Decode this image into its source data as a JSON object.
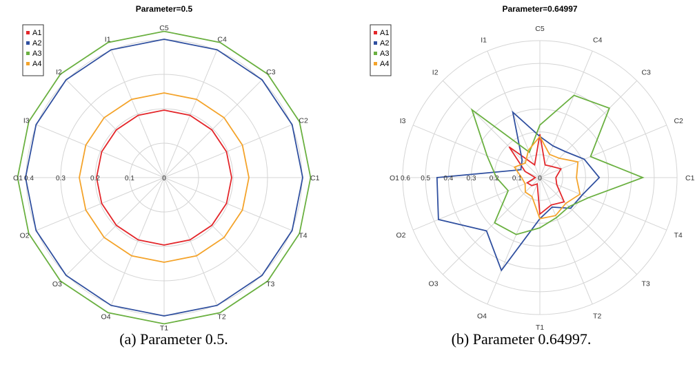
{
  "chart_data": [
    {
      "type": "radar",
      "title": "Parameter=0.5",
      "caption": "(a) Parameter 0.5.",
      "axes": [
        "C5",
        "C4",
        "C3",
        "C2",
        "C1",
        "T4",
        "T3",
        "T2",
        "T1",
        "O4",
        "O3",
        "O2",
        "O1",
        "I3",
        "I2",
        "I1"
      ],
      "rmax": 0.4,
      "ticks": [
        0,
        0.1,
        0.2,
        0.3
      ],
      "tick_labels": [
        "0",
        "0.1",
        "0.2",
        "0.3"
      ],
      "outer_label": "0.4",
      "grid": true,
      "legend_position": "top-left",
      "series": [
        {
          "name": "A1",
          "color": "#e3262a",
          "values": [
            0.196,
            0.196,
            0.196,
            0.196,
            0.196,
            0.196,
            0.196,
            0.196,
            0.196,
            0.196,
            0.196,
            0.196,
            0.196,
            0.196,
            0.196,
            0.196
          ]
        },
        {
          "name": "A2",
          "color": "#2f4f9f",
          "values": [
            0.402,
            0.402,
            0.402,
            0.402,
            0.402,
            0.402,
            0.402,
            0.402,
            0.402,
            0.402,
            0.402,
            0.402,
            0.402,
            0.402,
            0.402,
            0.402
          ]
        },
        {
          "name": "A3",
          "color": "#6ab040",
          "values": [
            0.425,
            0.425,
            0.425,
            0.425,
            0.425,
            0.425,
            0.425,
            0.425,
            0.425,
            0.425,
            0.425,
            0.425,
            0.425,
            0.425,
            0.425,
            0.425
          ]
        },
        {
          "name": "A4",
          "color": "#f4a32a",
          "values": [
            0.246,
            0.246,
            0.246,
            0.246,
            0.246,
            0.246,
            0.246,
            0.246,
            0.246,
            0.246,
            0.246,
            0.246,
            0.246,
            0.246,
            0.246,
            0.246
          ]
        }
      ]
    },
    {
      "type": "radar",
      "title": "Parameter=0.64997",
      "caption": "(b) Parameter 0.64997.",
      "axes": [
        "C5",
        "C4",
        "C3",
        "C2",
        "C1",
        "T4",
        "T3",
        "T2",
        "T1",
        "O4",
        "O3",
        "O2",
        "O1",
        "I3",
        "I2",
        "I1"
      ],
      "rmax": 0.6,
      "ticks": [
        0,
        0.1,
        0.2,
        0.3,
        0.4,
        0.5
      ],
      "tick_labels": [
        "0",
        "0.1",
        "0.2",
        "0.3",
        "0.4",
        "0.5"
      ],
      "outer_label": "0.6",
      "grid": true,
      "legend_position": "top-left",
      "series": [
        {
          "name": "A1",
          "color": "#e3262a",
          "values": [
            0.19,
            0.06,
            0.07,
            0.1,
            0.07,
            0.08,
            0.15,
            0.13,
            0.16,
            0.03,
            0.05,
            0.06,
            0.02,
            0.07,
            0.19,
            0.06
          ]
        },
        {
          "name": "A2",
          "color": "#2f4f9f",
          "values": [
            0.18,
            0.15,
            0.16,
            0.21,
            0.26,
            0.2,
            0.19,
            0.14,
            0.18,
            0.44,
            0.33,
            0.48,
            0.45,
            0.09,
            0.11,
            0.31
          ]
        },
        {
          "name": "A3",
          "color": "#6ab040",
          "values": [
            0.23,
            0.39,
            0.43,
            0.24,
            0.45,
            0.23,
            0.18,
            0.19,
            0.22,
            0.27,
            0.28,
            0.15,
            0.19,
            0.25,
            0.42,
            0.12
          ]
        },
        {
          "name": "A4",
          "color": "#f4a32a",
          "values": [
            0.18,
            0.11,
            0.12,
            0.18,
            0.16,
            0.19,
            0.16,
            0.18,
            0.18,
            0.09,
            0.09,
            0.07,
            0.08,
            0.12,
            0.09,
            0.13
          ]
        }
      ]
    }
  ]
}
